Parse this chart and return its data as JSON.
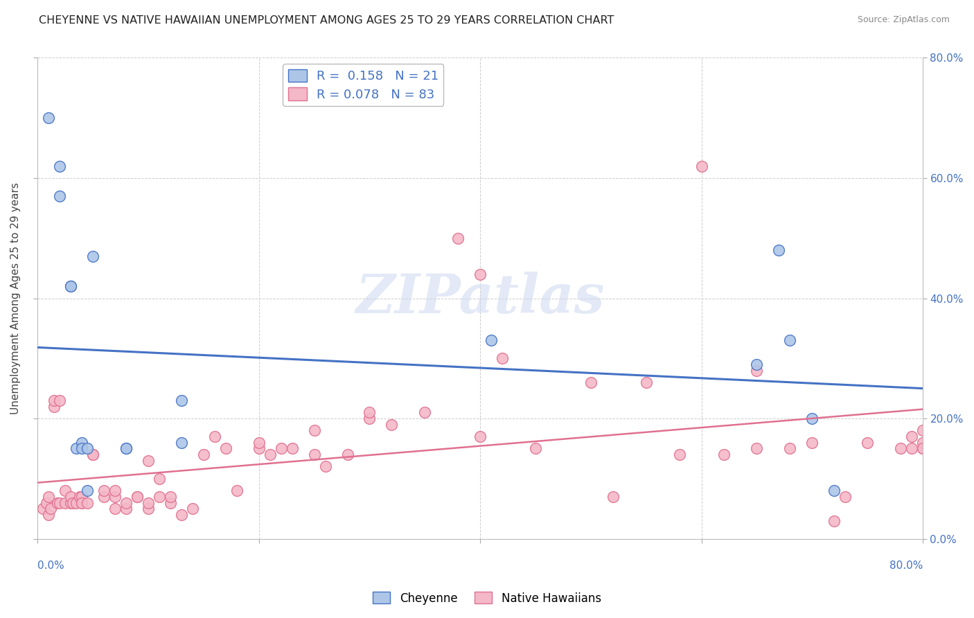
{
  "title": "CHEYENNE VS NATIVE HAWAIIAN UNEMPLOYMENT AMONG AGES 25 TO 29 YEARS CORRELATION CHART",
  "source": "Source: ZipAtlas.com",
  "ylabel": "Unemployment Among Ages 25 to 29 years",
  "cheyenne_R": 0.158,
  "cheyenne_N": 21,
  "hawaiian_R": 0.078,
  "hawaiian_N": 83,
  "xlim": [
    0,
    80
  ],
  "ylim": [
    0,
    80
  ],
  "background_color": "#ffffff",
  "cheyenne_color": "#adc6e8",
  "cheyenne_edge_color": "#4472c4",
  "hawaiian_color": "#f4b8c8",
  "hawaiian_edge_color": "#e07090",
  "cheyenne_line_color": "#4472c4",
  "hawaiian_line_color": "#e07090",
  "cheyenne_x": [
    1,
    2,
    2,
    3,
    3,
    3.5,
    4,
    4,
    4.5,
    4.5,
    5,
    8,
    8,
    13,
    13,
    41,
    65,
    67,
    68,
    70,
    72
  ],
  "cheyenne_y": [
    70,
    62,
    57,
    42,
    42,
    15,
    16,
    15,
    15,
    8,
    47,
    15,
    15,
    16,
    23,
    33,
    29,
    48,
    33,
    20,
    8
  ],
  "hawaiian_x": [
    0.5,
    0.8,
    1,
    1,
    1.2,
    1.5,
    1.5,
    1.8,
    2,
    2,
    2.5,
    2.5,
    3,
    3,
    3.2,
    3.5,
    3.8,
    4,
    4,
    4,
    4.5,
    5,
    5,
    6,
    6,
    7,
    7,
    7,
    8,
    8,
    9,
    9,
    10,
    10,
    10,
    11,
    11,
    12,
    12,
    13,
    14,
    15,
    16,
    17,
    18,
    20,
    20,
    21,
    22,
    23,
    25,
    25,
    26,
    28,
    30,
    30,
    32,
    35,
    38,
    40,
    40,
    42,
    45,
    50,
    52,
    55,
    58,
    60,
    62,
    65,
    65,
    68,
    70,
    72,
    73,
    75,
    78,
    79,
    79,
    80,
    80,
    80,
    80
  ],
  "hawaiian_y": [
    5,
    6,
    4,
    7,
    5,
    22,
    23,
    6,
    6,
    23,
    8,
    6,
    6,
    7,
    6,
    6,
    7,
    6,
    7,
    6,
    6,
    14,
    14,
    7,
    8,
    5,
    7,
    8,
    5,
    6,
    7,
    7,
    5,
    6,
    13,
    7,
    10,
    6,
    7,
    4,
    5,
    14,
    17,
    15,
    8,
    15,
    16,
    14,
    15,
    15,
    18,
    14,
    12,
    14,
    20,
    21,
    19,
    21,
    50,
    17,
    44,
    30,
    15,
    26,
    7,
    26,
    14,
    62,
    14,
    28,
    15,
    15,
    16,
    3,
    7,
    16,
    15,
    15,
    17,
    15,
    16,
    18,
    15
  ],
  "ytick_values": [
    0,
    20,
    40,
    60,
    80
  ],
  "xtick_values": [
    0,
    20,
    40,
    60,
    80
  ],
  "right_tick_color": "#4472c4",
  "watermark_text": "ZIPatlas",
  "legend_R1": "R =  0.158   N = 21",
  "legend_R2": "R = 0.078   N = 83"
}
